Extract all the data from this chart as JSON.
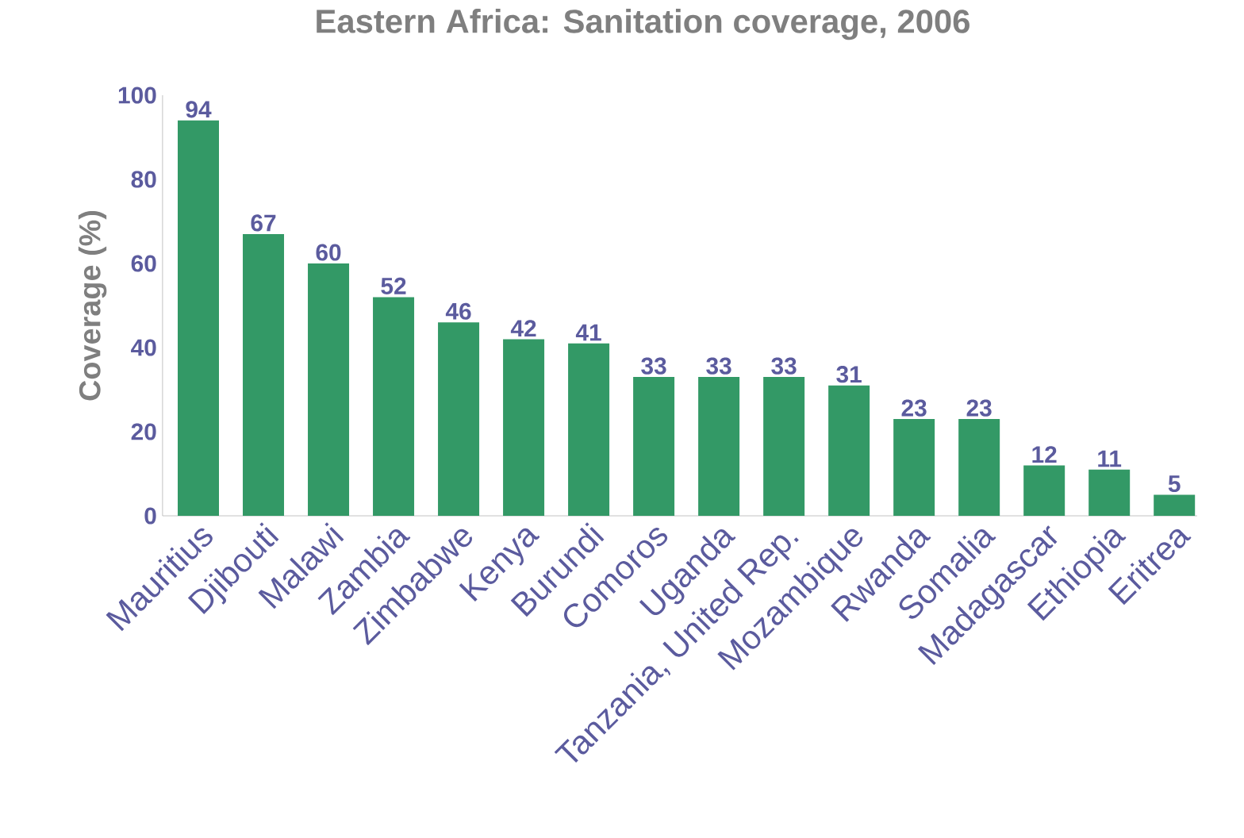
{
  "chart_data": {
    "type": "bar",
    "title": "Eastern Africa: Sanitation coverage, 2006",
    "ylabel": "Coverage (%)",
    "categories": [
      "Mauritius",
      "Djibouti",
      "Malawi",
      "Zambia",
      "Zimbabwe",
      "Kenya",
      "Burundi",
      "Comoros",
      "Uganda",
      "Tanzania, United Rep.",
      "Mozambique",
      "Rwanda",
      "Somalia",
      "Madagascar",
      "Ethiopia",
      "Eritrea"
    ],
    "values": [
      94,
      67,
      60,
      52,
      46,
      42,
      41,
      33,
      33,
      33,
      31,
      23,
      23,
      12,
      11,
      5
    ],
    "color": "#339966",
    "ylim": [
      0,
      100
    ],
    "yticks": [
      0,
      20,
      40,
      60,
      80,
      100
    ],
    "data_labels": true
  }
}
